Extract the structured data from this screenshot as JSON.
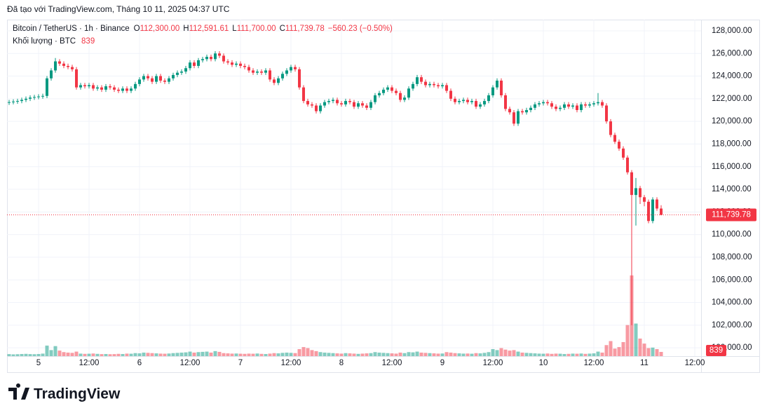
{
  "header": {
    "caption": "Đã tạo với TradingView.com, Tháng 10 11, 2025 04:37 UTC",
    "logo": "TradingView"
  },
  "chart_data": {
    "type": "candlestick",
    "title": "Bitcoin / TetherUS · 1h · Binance",
    "ohlc_legend": [
      {
        "key": "O",
        "label": "112,300.00"
      },
      {
        "key": "H",
        "label": "112,591.61"
      },
      {
        "key": "L",
        "label": "111,700.00"
      },
      {
        "key": "C",
        "label": "111,739.78"
      }
    ],
    "change_label": "−560.23 (−0.50%)",
    "volume_title": "Khối lượng · BTC",
    "volume_label": "839",
    "last_price_label": "111,739.78",
    "up_color": "#089981",
    "down_color": "#f23645",
    "grid": true,
    "xlim": [
      -0.5,
      164.5
    ],
    "xticks": [
      {
        "value": 7,
        "label": "5"
      },
      {
        "value": 19,
        "label": "12:00"
      },
      {
        "value": 31,
        "label": "6"
      },
      {
        "value": 43,
        "label": "12:00"
      },
      {
        "value": 55,
        "label": "7"
      },
      {
        "value": 67,
        "label": "12:00"
      },
      {
        "value": 79,
        "label": "8"
      },
      {
        "value": 91,
        "label": "12:00"
      },
      {
        "value": 103,
        "label": "9"
      },
      {
        "value": 115,
        "label": "12:00"
      },
      {
        "value": 127,
        "label": "10"
      },
      {
        "value": 139,
        "label": "12:00"
      },
      {
        "value": 151,
        "label": "11"
      },
      {
        "value": 163,
        "label": "12:00"
      }
    ],
    "ylim": [
      99140,
      128740
    ],
    "yticks": [
      {
        "value": 100000,
        "label": "100,000.00"
      },
      {
        "value": 102000,
        "label": "102,000.00"
      },
      {
        "value": 104000,
        "label": "104,000.00"
      },
      {
        "value": 106000,
        "label": "106,000.00"
      },
      {
        "value": 108000,
        "label": "108,000.00"
      },
      {
        "value": 110000,
        "label": "110,000.00"
      },
      {
        "value": 112000,
        "label": "112,000.00"
      },
      {
        "value": 114000,
        "label": "114,000.00"
      },
      {
        "value": 116000,
        "label": "116,000.00"
      },
      {
        "value": 118000,
        "label": "118,000.00"
      },
      {
        "value": 120000,
        "label": "120,000.00"
      },
      {
        "value": 122000,
        "label": "122,000.00"
      },
      {
        "value": 124000,
        "label": "124,000.00"
      },
      {
        "value": 126000,
        "label": "126,000.00"
      },
      {
        "value": 128000,
        "label": "128,000.00"
      }
    ],
    "open": [
      121650,
      121700,
      121750,
      121800,
      121900,
      122000,
      122100,
      122150,
      122200,
      122250,
      123800,
      124500,
      125300,
      125100,
      124900,
      124800,
      124600,
      123000,
      123200,
      123100,
      123200,
      122900,
      123000,
      122800,
      123100,
      123000,
      122800,
      122700,
      122900,
      122700,
      122900,
      123300,
      123700,
      124000,
      123800,
      123500,
      124000,
      123600,
      123500,
      123800,
      124100,
      124300,
      124400,
      124700,
      125200,
      124900,
      125400,
      125500,
      125700,
      125500,
      126000,
      125800,
      125300,
      125200,
      125000,
      125100,
      124900,
      124800,
      124500,
      124300,
      124400,
      124300,
      124500,
      123700,
      123400,
      123800,
      124200,
      124500,
      124800,
      124600,
      123000,
      121800,
      121500,
      121400,
      120900,
      121400,
      121700,
      121800,
      121900,
      121600,
      121500,
      121800,
      121700,
      121300,
      121600,
      121400,
      121200,
      121700,
      122300,
      122500,
      122800,
      123000,
      122700,
      122500,
      121900,
      122100,
      122900,
      123300,
      123900,
      123500,
      123200,
      123300,
      123200,
      123100,
      123200,
      122700,
      122000,
      121700,
      121800,
      121900,
      121700,
      121800,
      121300,
      121500,
      121800,
      122300,
      123000,
      123600,
      122300,
      121100,
      120800,
      119800,
      120900,
      120800,
      121000,
      121200,
      121500,
      121600,
      121700,
      121600,
      121300,
      121100,
      121200,
      121500,
      121300,
      121400,
      121000,
      121500,
      121400,
      121500,
      121600,
      121700,
      121400,
      120000,
      118800,
      118200,
      117600,
      116800,
      115500,
      113500,
      114100,
      113300,
      112900,
      111200,
      113100,
      112300
    ],
    "high": [
      121900,
      121950,
      122000,
      122100,
      122200,
      122300,
      122350,
      122400,
      122450,
      124000,
      124700,
      125600,
      125500,
      125300,
      125100,
      125000,
      124800,
      123400,
      123400,
      123400,
      123400,
      123200,
      123200,
      123300,
      123300,
      123200,
      123000,
      123100,
      123100,
      123100,
      123500,
      123900,
      124200,
      124200,
      124000,
      124200,
      124200,
      123800,
      124000,
      124300,
      124500,
      124600,
      124900,
      125400,
      125400,
      125600,
      125700,
      125900,
      125900,
      126200,
      126200,
      126000,
      125500,
      125400,
      125300,
      125300,
      125100,
      125000,
      124700,
      124600,
      124600,
      124700,
      124700,
      123900,
      124000,
      124400,
      124700,
      125000,
      125000,
      124800,
      123200,
      122000,
      121700,
      121600,
      121600,
      121900,
      122000,
      122100,
      122100,
      121800,
      122000,
      122000,
      121900,
      121800,
      121800,
      121600,
      121900,
      122500,
      122700,
      123000,
      123200,
      123200,
      122900,
      122700,
      122300,
      123100,
      123500,
      124100,
      124100,
      123700,
      123500,
      123500,
      123400,
      123400,
      123400,
      122900,
      122200,
      122000,
      122100,
      122100,
      122000,
      122000,
      121700,
      122000,
      122500,
      123200,
      123800,
      123800,
      122500,
      121300,
      121000,
      121100,
      121100,
      121200,
      121400,
      121700,
      121800,
      121900,
      121900,
      121800,
      121500,
      121400,
      121700,
      121700,
      121600,
      121600,
      121700,
      121700,
      121700,
      121800,
      122500,
      121900,
      121600,
      120200,
      119000,
      118400,
      117800,
      117000,
      115700,
      115000,
      114300,
      113500,
      113100,
      113300,
      113300,
      112591.61
    ],
    "low": [
      121450,
      121500,
      121550,
      121600,
      121700,
      121800,
      121900,
      121950,
      122000,
      122050,
      123600,
      124300,
      124900,
      124700,
      124600,
      124400,
      122800,
      122800,
      122900,
      122900,
      122700,
      122700,
      122600,
      122600,
      122800,
      122600,
      122500,
      122500,
      122500,
      122500,
      122700,
      123100,
      123500,
      123600,
      123300,
      123300,
      123400,
      123300,
      123300,
      123600,
      123900,
      124100,
      124200,
      124500,
      124700,
      124700,
      125200,
      125300,
      125300,
      125300,
      125600,
      125100,
      125000,
      124800,
      124800,
      124700,
      124600,
      124300,
      124100,
      124100,
      124100,
      124100,
      123500,
      123200,
      123200,
      123600,
      124000,
      124300,
      124400,
      122800,
      121600,
      121300,
      121200,
      120700,
      120700,
      121200,
      121500,
      121600,
      121400,
      121300,
      121300,
      121500,
      121100,
      121100,
      121200,
      121000,
      121000,
      121500,
      122100,
      122300,
      122600,
      122500,
      122300,
      121700,
      121700,
      121900,
      122700,
      123100,
      123300,
      123000,
      123000,
      123000,
      122900,
      122900,
      122500,
      121800,
      121500,
      121500,
      121600,
      121500,
      121500,
      121100,
      121100,
      121300,
      121600,
      122100,
      122800,
      122100,
      120900,
      120600,
      119600,
      119600,
      120600,
      120600,
      120800,
      121000,
      121300,
      121400,
      121400,
      121100,
      120900,
      120900,
      121000,
      121100,
      121100,
      120800,
      120800,
      121200,
      121200,
      121300,
      121400,
      121200,
      119800,
      118600,
      118000,
      117400,
      116600,
      115300,
      102000,
      110800,
      112700,
      112500,
      111000,
      111000,
      112100,
      111700
    ],
    "close": [
      121700,
      121750,
      121800,
      121900,
      122000,
      122100,
      122150,
      122200,
      122250,
      123800,
      124500,
      125300,
      125100,
      124900,
      124800,
      124600,
      123000,
      123200,
      123100,
      123200,
      122900,
      123000,
      122800,
      123100,
      123000,
      122800,
      122700,
      122900,
      122700,
      122900,
      123300,
      123700,
      124000,
      123800,
      123500,
      124000,
      123600,
      123500,
      123800,
      124100,
      124300,
      124400,
      124700,
      125200,
      124900,
      125400,
      125500,
      125700,
      125500,
      126000,
      125800,
      125300,
      125200,
      125000,
      125100,
      124900,
      124800,
      124500,
      124300,
      124400,
      124300,
      124500,
      123700,
      123400,
      123800,
      124200,
      124500,
      124800,
      124600,
      123000,
      121800,
      121500,
      121400,
      120900,
      121400,
      121700,
      121800,
      121900,
      121600,
      121500,
      121800,
      121700,
      121300,
      121600,
      121400,
      121200,
      121700,
      122300,
      122500,
      122800,
      123000,
      122700,
      122500,
      121900,
      122100,
      122900,
      123300,
      123900,
      123500,
      123200,
      123300,
      123200,
      123100,
      123200,
      122700,
      122000,
      121700,
      121800,
      121900,
      121700,
      121800,
      121300,
      121500,
      121800,
      122300,
      123000,
      123600,
      122300,
      121100,
      120800,
      119800,
      120900,
      120800,
      121000,
      121200,
      121500,
      121600,
      121700,
      121600,
      121300,
      121100,
      121200,
      121500,
      121300,
      121400,
      121000,
      121500,
      121400,
      121500,
      121600,
      121700,
      121400,
      120000,
      118800,
      118200,
      117600,
      116800,
      115500,
      113500,
      114100,
      113300,
      112900,
      111200,
      113100,
      112300,
      111739.78
    ],
    "volume": [
      400,
      350,
      380,
      420,
      450,
      400,
      380,
      420,
      500,
      2100,
      1200,
      2000,
      1100,
      800,
      700,
      650,
      900,
      500,
      450,
      480,
      520,
      450,
      400,
      420,
      380,
      400,
      450,
      420,
      500,
      480,
      600,
      550,
      700,
      650,
      600,
      550,
      500,
      480,
      520,
      600,
      650,
      700,
      750,
      900,
      700,
      800,
      850,
      900,
      700,
      1000,
      850,
      600,
      550,
      500,
      520,
      480,
      450,
      500,
      480,
      520,
      450,
      420,
      500,
      600,
      550,
      650,
      700,
      650,
      600,
      1400,
      1800,
      1600,
      1200,
      1000,
      800,
      700,
      650,
      600,
      550,
      500,
      600,
      550,
      500,
      450,
      500,
      550,
      600,
      800,
      700,
      650,
      600,
      550,
      500,
      700,
      600,
      800,
      750,
      900,
      700,
      650,
      600,
      550,
      500,
      520,
      800,
      700,
      600,
      550,
      500,
      520,
      480,
      600,
      550,
      650,
      800,
      1400,
      1200,
      1600,
      1300,
      1100,
      1200,
      900,
      700,
      650,
      600,
      550,
      500,
      480,
      520,
      450,
      500,
      480,
      420,
      450,
      500,
      480,
      520,
      450,
      500,
      550,
      900,
      700,
      2200,
      3000,
      1500,
      1800,
      2800,
      6200,
      16100,
      6500,
      3500,
      2500,
      1600,
      1700,
      1400,
      839
    ]
  }
}
